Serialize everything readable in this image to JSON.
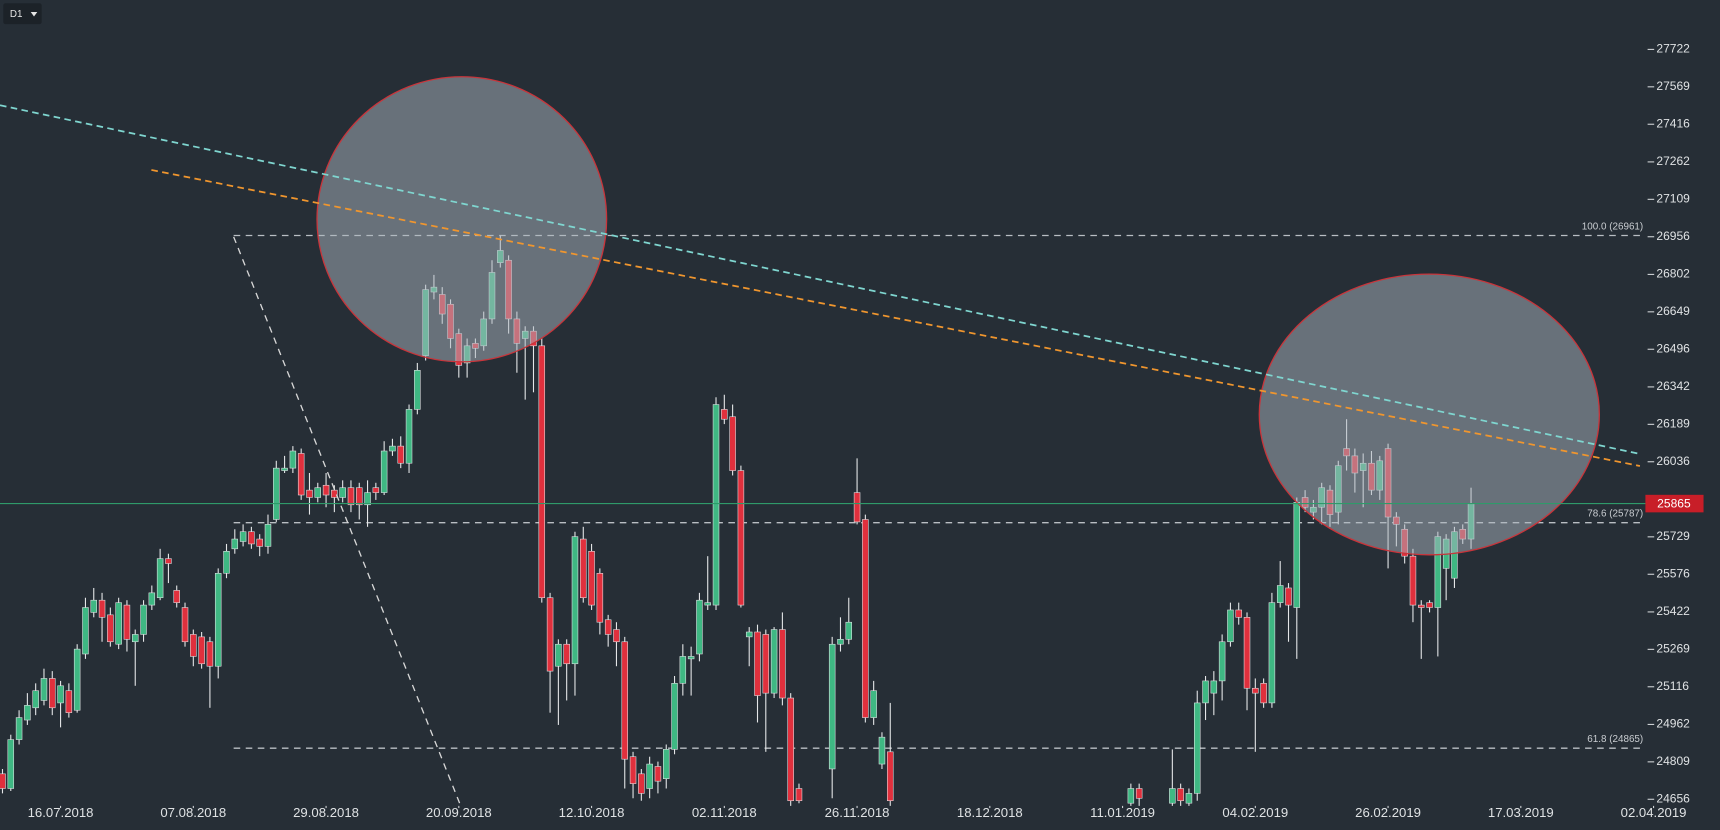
{
  "chart_data": {
    "type": "candlestick",
    "timeframe": "D1",
    "up_color": "#3fb883",
    "down_color": "#e0303d",
    "xlim": [
      -0.3,
      200
    ],
    "xticks": [
      {
        "value": 7,
        "label": "16.07.2018"
      },
      {
        "value": 23,
        "label": "07.08.2018"
      },
      {
        "value": 39,
        "label": "29.08.2018"
      },
      {
        "value": 55,
        "label": "20.09.2018"
      },
      {
        "value": 71,
        "label": "12.10.2018"
      },
      {
        "value": 87,
        "label": "02.11.2018"
      },
      {
        "value": 103,
        "label": "26.11.2018"
      },
      {
        "value": 119,
        "label": "18.12.2018"
      },
      {
        "value": 135,
        "label": "11.01.2019"
      },
      {
        "value": 151,
        "label": "04.02.2019"
      },
      {
        "value": 167,
        "label": "26.02.2019"
      },
      {
        "value": 183,
        "label": "17.03.2019"
      },
      {
        "value": 199,
        "label": "02.04.2019"
      }
    ],
    "ylim": [
      24629,
      27924
    ],
    "yticks": [
      27722,
      27569,
      27416,
      27262,
      27109,
      26956,
      26802,
      26649,
      26496,
      26342,
      26189,
      26036,
      25729,
      25576,
      25422,
      25269,
      25116,
      24962,
      24809,
      24656
    ],
    "last_price": 25865,
    "fib_levels": [
      {
        "label": "100.0 (26961)",
        "value": 26961
      },
      {
        "label": "78.6 (25787)",
        "value": 25787
      },
      {
        "label": "61.8 (24865)",
        "value": 24865
      }
    ],
    "open": [
      24760,
      24700,
      24900,
      24980,
      25030,
      25060,
      25150,
      25050,
      25100,
      25020,
      25250,
      25420,
      25470,
      25410,
      25290,
      25450,
      25300,
      25330,
      25450,
      25480,
      25640,
      25510,
      25440,
      25330,
      25320,
      25300,
      25200,
      25580,
      25680,
      25710,
      25750,
      25720,
      25690,
      25800,
      26000,
      26010,
      26070,
      25920,
      25890,
      25940,
      25920,
      25890,
      25930,
      25930,
      25860,
      25930,
      25910,
      26080,
      26100,
      26030,
      26250,
      26470,
      26730,
      26720,
      26680,
      26560,
      26440,
      26520,
      26510,
      26620,
      26850,
      26860,
      26620,
      26540,
      26570,
      26510,
      25480,
      25200,
      25290,
      25210,
      25720,
      25670,
      25580,
      25390,
      25350,
      25300,
      24830,
      24760,
      24700,
      24790,
      24740,
      24860,
      25130,
      25230,
      25250,
      25450,
      25450,
      26250,
      26220,
      26000,
      25320,
      25340,
      25330,
      25090,
      25350,
      25070,
      24700,
      null,
      null,
      null,
      24780,
      25290,
      25310,
      25910,
      25800,
      24990,
      24800,
      24850,
      null,
      null,
      null,
      null,
      null,
      null,
      null,
      null,
      null,
      null,
      null,
      null,
      null,
      null,
      null,
      null,
      null,
      null,
      null,
      null,
      null,
      null,
      null,
      null,
      null,
      null,
      null,
      null,
      24640,
      24700,
      null,
      null,
      null,
      24640,
      24700,
      24640,
      24680,
      25050,
      25090,
      25140,
      25300,
      25430,
      25400,
      25110,
      25130,
      25050,
      25460,
      25520,
      25440,
      25890,
      25830,
      25850,
      25920,
      25830,
      26090,
      26060,
      26000,
      26030,
      25920,
      26090,
      25810,
      25760,
      25650,
      25450,
      25460,
      25440,
      25600,
      25560,
      25760,
      25720
    ],
    "high": [
      24780,
      24920,
      25020,
      25090,
      25130,
      25190,
      25180,
      25140,
      25130,
      25290,
      25480,
      25520,
      25500,
      25440,
      25480,
      25470,
      25350,
      25470,
      25530,
      25680,
      25660,
      25530,
      25460,
      25350,
      25340,
      25320,
      25600,
      25700,
      25760,
      25780,
      25770,
      25740,
      25820,
      26040,
      26060,
      26100,
      26090,
      25990,
      25950,
      25990,
      25940,
      25960,
      25960,
      25950,
      25960,
      25950,
      26120,
      26130,
      26140,
      26270,
      26440,
      26760,
      26800,
      26750,
      26700,
      26580,
      26540,
      26540,
      26650,
      26860,
      26960,
      26880,
      26650,
      26590,
      26590,
      26540,
      25500,
      25310,
      25310,
      25750,
      25770,
      25700,
      25600,
      25410,
      25380,
      25320,
      24850,
      24780,
      24830,
      24810,
      24880,
      25160,
      25290,
      25280,
      25500,
      25650,
      26300,
      26310,
      26270,
      26020,
      25360,
      25370,
      25350,
      25360,
      25420,
      25090,
      24720,
      null,
      null,
      null,
      25320,
      25400,
      25480,
      26050,
      25820,
      25140,
      24930,
      25050,
      null,
      null,
      null,
      null,
      null,
      null,
      null,
      null,
      null,
      null,
      null,
      null,
      null,
      null,
      null,
      null,
      null,
      null,
      null,
      null,
      null,
      null,
      null,
      null,
      null,
      null,
      null,
      null,
      24720,
      24720,
      null,
      null,
      null,
      24860,
      24720,
      24700,
      25100,
      25160,
      25180,
      25330,
      25460,
      25460,
      25420,
      25150,
      25150,
      25500,
      25630,
      25540,
      25890,
      25920,
      25880,
      25950,
      25940,
      26040,
      26210,
      26090,
      26070,
      26080,
      26060,
      26110,
      25830,
      25780,
      25680,
      25470,
      25470,
      25750,
      25740,
      25770,
      25780,
      25930
    ],
    "low": [
      24680,
      24690,
      24880,
      24960,
      25000,
      25040,
      25000,
      24950,
      24990,
      25010,
      25230,
      25400,
      25300,
      25280,
      25270,
      25260,
      25120,
      25300,
      25430,
      25470,
      25540,
      25440,
      25280,
      25200,
      25190,
      25030,
      25150,
      25560,
      25660,
      25690,
      25680,
      25650,
      25660,
      25790,
      25990,
      25990,
      25880,
      25820,
      25870,
      25850,
      25830,
      25870,
      25830,
      25800,
      25770,
      25880,
      25900,
      26060,
      26010,
      25990,
      26230,
      26450,
      26700,
      26600,
      26500,
      26380,
      26380,
      26460,
      26490,
      26600,
      26830,
      26560,
      26400,
      26290,
      26320,
      25460,
      25010,
      24960,
      25060,
      25080,
      25460,
      25430,
      25330,
      25280,
      25200,
      24700,
      24660,
      24650,
      24660,
      24680,
      24700,
      24840,
      25080,
      25080,
      25220,
      25430,
      25430,
      26190,
      25980,
      25440,
      25200,
      24970,
      24850,
      25070,
      25040,
      24600,
      24640,
      null,
      null,
      null,
      24660,
      25260,
      25290,
      25780,
      24970,
      24960,
      24780,
      24600,
      null,
      null,
      null,
      null,
      null,
      null,
      null,
      null,
      null,
      null,
      null,
      null,
      null,
      null,
      null,
      null,
      null,
      null,
      null,
      null,
      null,
      null,
      null,
      null,
      null,
      null,
      null,
      null,
      24600,
      24600,
      null,
      null,
      null,
      24600,
      24620,
      24600,
      24650,
      24980,
      25000,
      25060,
      25280,
      25370,
      25020,
      24850,
      25030,
      25030,
      25440,
      25300,
      25230,
      25830,
      25800,
      25780,
      25770,
      25780,
      26000,
      25910,
      25850,
      25900,
      25880,
      25600,
      25690,
      25620,
      25380,
      25230,
      25420,
      25240,
      25470,
      25520,
      25700,
      25680
    ],
    "close": [
      24700,
      24900,
      24990,
      25040,
      25100,
      25150,
      25030,
      25120,
      25010,
      25270,
      25440,
      25470,
      25400,
      25300,
      25460,
      25310,
      25330,
      25450,
      25500,
      25640,
      25620,
      25460,
      25300,
      25240,
      25210,
      25200,
      25580,
      25670,
      25720,
      25750,
      25700,
      25690,
      25780,
      26010,
      26010,
      26080,
      25900,
      25890,
      25930,
      25900,
      25890,
      25930,
      25860,
      25860,
      25910,
      25910,
      26080,
      26100,
      26030,
      26250,
      26410,
      26740,
      26750,
      26640,
      26540,
      26430,
      26510,
      26500,
      26620,
      26810,
      26900,
      26620,
      26520,
      26570,
      26510,
      25480,
      25180,
      25290,
      25210,
      25730,
      25480,
      25450,
      25380,
      25330,
      25300,
      24820,
      24720,
      24680,
      24800,
      24730,
      24860,
      25130,
      25240,
      25240,
      25470,
      25460,
      26270,
      26210,
      26000,
      25450,
      25340,
      25080,
      25090,
      25350,
      25070,
      24650,
      24650,
      null,
      null,
      null,
      25290,
      25310,
      25380,
      25790,
      24990,
      25100,
      24910,
      24650,
      null,
      null,
      null,
      null,
      null,
      null,
      null,
      null,
      null,
      null,
      null,
      null,
      null,
      null,
      null,
      null,
      null,
      null,
      null,
      null,
      null,
      null,
      null,
      null,
      null,
      null,
      null,
      null,
      24700,
      24660,
      null,
      null,
      null,
      24700,
      24650,
      24680,
      25050,
      25140,
      25140,
      25300,
      25430,
      25400,
      25110,
      25090,
      25050,
      25460,
      25530,
      25450,
      25870,
      25850,
      25850,
      25930,
      25820,
      26020,
      26060,
      25990,
      26030,
      25920,
      26040,
      25810,
      25780,
      25650,
      25450,
      25440,
      25440,
      25730,
      25720,
      25750,
      25720,
      25865
    ]
  }
}
